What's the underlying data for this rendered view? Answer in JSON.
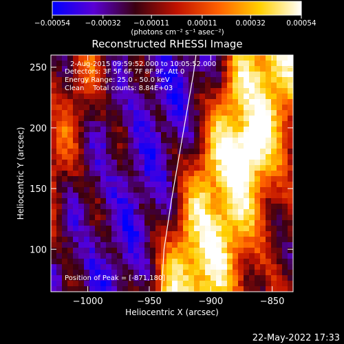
{
  "chart_data": {
    "type": "heatmap",
    "title": "Reconstructed RHESSI Image",
    "xlabel": "Heliocentric X (arcsec)",
    "ylabel": "Heliocentric Y (arcsec)",
    "xlim": [
      -1030,
      -833
    ],
    "ylim": [
      65,
      260
    ],
    "x_ticks": [
      -1000,
      -950,
      -900,
      -850
    ],
    "x_tick_labels": [
      "−1000",
      "−950",
      "−900",
      "−850"
    ],
    "y_ticks": [
      100,
      150,
      200,
      250
    ],
    "y_tick_labels": [
      "100",
      "150",
      "200",
      "250"
    ],
    "colorbar": {
      "min": -0.00054,
      "max": 0.00054,
      "ticks": [
        -0.00054,
        -0.00032,
        -0.00011,
        0.00011,
        0.00032,
        0.00054
      ],
      "tick_labels": [
        "−0.00054",
        "−0.00032",
        "−0.00011",
        "0.00011",
        "0.00032",
        "0.00054"
      ],
      "unit_label": "(photons cm⁻² s⁻¹ asec⁻²)",
      "colors": [
        "#0000ff",
        "#5a00d4",
        "#3a0010",
        "#c01200",
        "#ff6000",
        "#ffd000",
        "#ffffff"
      ]
    },
    "annotations": {
      "time_range": "2-Aug-2015 09:59:52.000 to 10:05:52.000",
      "detectors": "Detectors: 3F 5F 6F 7F 8F 9F, Att 0",
      "energy_range": "Energy Range: 25.0 - 50.0 keV",
      "method_counts": "Clean    Total counts: 8.84E+03",
      "peak": "Position of Peak = [-871,180]"
    },
    "peak_position": [
      -871,
      180
    ],
    "limb_curve": [
      [
        -940,
        65
      ],
      [
        -938,
        100
      ],
      [
        -932,
        140
      ],
      [
        -926,
        175
      ],
      [
        -920,
        210
      ],
      [
        -914,
        245
      ],
      [
        -912,
        260
      ]
    ],
    "grid": false,
    "footer_timestamp": "22-May-2022 17:33"
  }
}
